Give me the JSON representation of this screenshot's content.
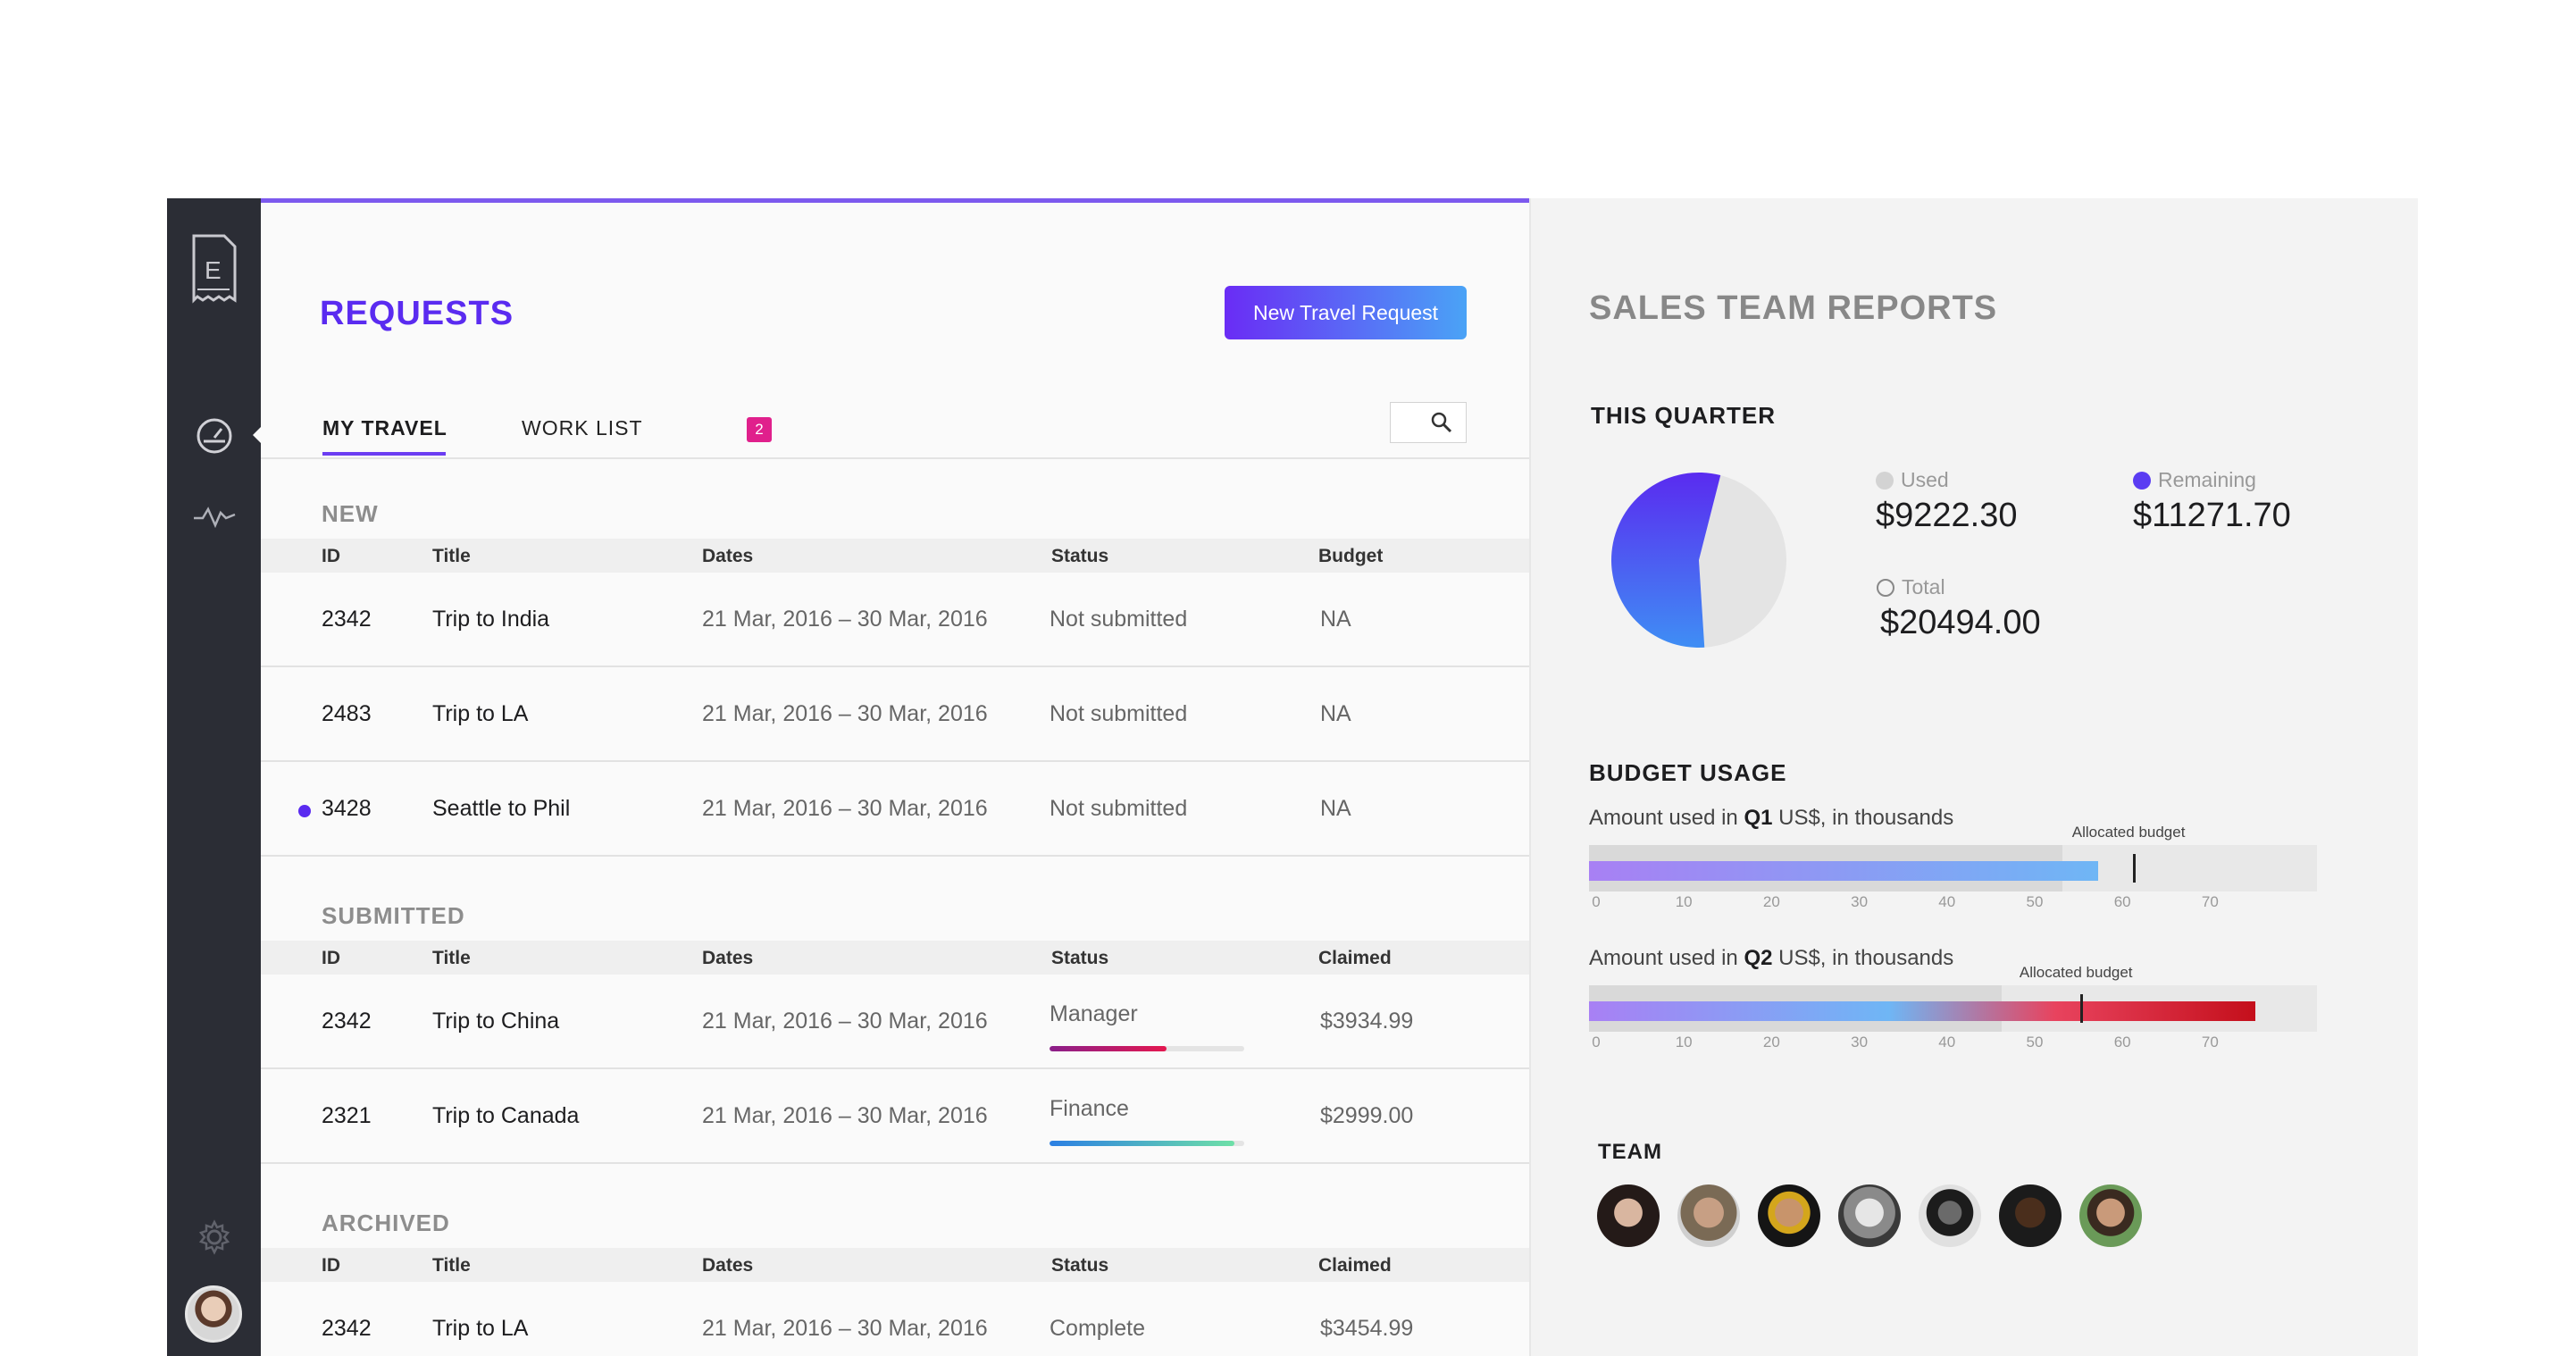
{
  "sidebar": {
    "logo_icon": "receipt-logo-icon",
    "nav": [
      {
        "name": "dashboard-icon",
        "active": true
      },
      {
        "name": "activity-icon",
        "active": false
      }
    ],
    "settings_icon": "gear-icon",
    "avatar_icon": "user-avatar"
  },
  "requests": {
    "title": "REQUESTS",
    "new_button": "New Travel Request",
    "tabs": {
      "my_travel": "MY TRAVEL",
      "work_list": "WORK LIST",
      "work_list_count": "2"
    },
    "search_icon": "search-icon",
    "new_section": {
      "title": "NEW",
      "columns": {
        "id": "ID",
        "title": "Title",
        "dates": "Dates",
        "status": "Status",
        "last": "Budget"
      },
      "rows": [
        {
          "id": "2342",
          "title": "Trip to India",
          "dates": "21 Mar, 2016 – 30 Mar, 2016",
          "status": "Not submitted",
          "amount": "NA",
          "unread": false
        },
        {
          "id": "2483",
          "title": "Trip to LA",
          "dates": "21 Mar, 2016 – 30 Mar, 2016",
          "status": "Not submitted",
          "amount": "NA",
          "unread": false
        },
        {
          "id": "3428",
          "title": "Seattle to Phil",
          "dates": "21 Mar, 2016 – 30 Mar, 2016",
          "status": "Not submitted",
          "amount": "NA",
          "unread": true
        }
      ]
    },
    "submitted_section": {
      "title": "SUBMITTED",
      "columns": {
        "id": "ID",
        "title": "Title",
        "dates": "Dates",
        "status": "Status",
        "last": "Claimed"
      },
      "rows": [
        {
          "id": "2342",
          "title": "Trip to China",
          "dates": "21 Mar, 2016 – 30 Mar, 2016",
          "status": "Manager",
          "amount": "$3934.99",
          "progress": 0.6
        },
        {
          "id": "2321",
          "title": "Trip to Canada",
          "dates": "21 Mar, 2016 – 30 Mar, 2016",
          "status": "Finance",
          "amount": "$2999.00",
          "progress": 0.95
        }
      ]
    },
    "archived_section": {
      "title": "ARCHIVED",
      "columns": {
        "id": "ID",
        "title": "Title",
        "dates": "Dates",
        "status": "Status",
        "last": "Claimed"
      },
      "rows": [
        {
          "id": "2342",
          "title": "Trip to LA",
          "dates": "21 Mar, 2016 – 30 Mar, 2016",
          "status": "Complete",
          "amount": "$3454.99"
        }
      ]
    }
  },
  "reports": {
    "title": "SALES TEAM REPORTS",
    "quarter": {
      "heading": "THIS QUARTER",
      "used_label": "Used",
      "used_value": "$9222.30",
      "remaining_label": "Remaining",
      "remaining_value": "$11271.70",
      "total_label": "Total",
      "total_value": "$20494.00"
    },
    "budget": {
      "heading": "BUDGET USAGE",
      "q1": {
        "caption_pre": "Amount used in ",
        "quarter": "Q1",
        "caption_post": " US$, in thousands",
        "alloc_label": "Allocated budget",
        "used": 58,
        "allocated": 54,
        "marker": 62
      },
      "q2": {
        "caption_pre": "Amount used in ",
        "quarter": "Q2",
        "caption_post": " US$, in thousands",
        "alloc_label": "Allocated budget",
        "used": 76,
        "allocated": 47,
        "marker": 56
      },
      "ticks": [
        "0",
        "10",
        "20",
        "30",
        "40",
        "50",
        "60",
        "70"
      ]
    },
    "team": {
      "heading": "TEAM",
      "members": [
        "team-avatar-1",
        "team-avatar-2",
        "team-avatar-3",
        "team-avatar-4",
        "team-avatar-5",
        "team-avatar-6",
        "team-avatar-7"
      ]
    }
  },
  "chart_data": {
    "type": "pie",
    "title": "THIS QUARTER",
    "categories": [
      "Used",
      "Remaining"
    ],
    "values": [
      9222.3,
      11271.7
    ],
    "colors": [
      "#e4e4e4",
      "#5b3cf2"
    ]
  },
  "colors": {
    "accent": "#5a2bf0",
    "badge": "#e0208c",
    "sidebar": "#2b2d35"
  }
}
